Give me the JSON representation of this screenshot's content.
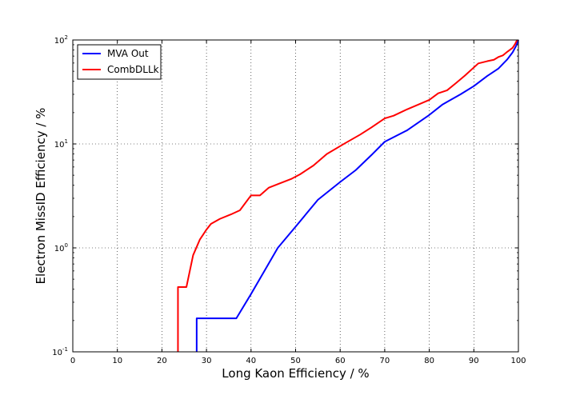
{
  "chart_data": {
    "type": "line",
    "title": "",
    "xlabel": "Long Kaon Efficiency / %",
    "ylabel": "Electron MissID Efficiency / %",
    "xlim": [
      0,
      100
    ],
    "ylim": [
      0.1,
      100
    ],
    "yscale": "log",
    "grid": true,
    "legend_position": "top-left",
    "x_ticks": [
      0,
      10,
      20,
      30,
      40,
      50,
      60,
      70,
      80,
      90,
      100
    ],
    "x_tick_labels": [
      "0",
      "10",
      "20",
      "30",
      "40",
      "50",
      "60",
      "70",
      "80",
      "90",
      "100"
    ],
    "y_ticks": [
      {
        "value": 0.1,
        "base": "10",
        "exp": "-1"
      },
      {
        "value": 1,
        "base": "10",
        "exp": "0"
      },
      {
        "value": 10,
        "base": "10",
        "exp": "1"
      },
      {
        "value": 100,
        "base": "10",
        "exp": "2"
      }
    ],
    "series": [
      {
        "name": "MVA Out",
        "color": "#0000ff",
        "points": [
          [
            27.8,
            0.1
          ],
          [
            27.8,
            0.21
          ],
          [
            36.7,
            0.21
          ],
          [
            40,
            0.36
          ],
          [
            43,
            0.6
          ],
          [
            46,
            1.0
          ],
          [
            50,
            1.6
          ],
          [
            55,
            2.9
          ],
          [
            60,
            4.3
          ],
          [
            63.5,
            5.6
          ],
          [
            67,
            7.8
          ],
          [
            70,
            10.5
          ],
          [
            75,
            13.5
          ],
          [
            80,
            19
          ],
          [
            83,
            24
          ],
          [
            87,
            30
          ],
          [
            90,
            36
          ],
          [
            93,
            45
          ],
          [
            95.5,
            53
          ],
          [
            97.5,
            65
          ],
          [
            98.7,
            76
          ],
          [
            99.5,
            88
          ],
          [
            100,
            100
          ]
        ]
      },
      {
        "name": "CombDLLk",
        "color": "#ff0000",
        "points": [
          [
            23.6,
            0.1
          ],
          [
            23.6,
            0.42
          ],
          [
            25.5,
            0.42
          ],
          [
            27,
            0.85
          ],
          [
            28.5,
            1.2
          ],
          [
            30,
            1.5
          ],
          [
            31,
            1.7
          ],
          [
            33,
            1.9
          ],
          [
            35.5,
            2.1
          ],
          [
            37.5,
            2.3
          ],
          [
            40,
            3.2
          ],
          [
            42,
            3.2
          ],
          [
            44,
            3.8
          ],
          [
            46,
            4.1
          ],
          [
            49,
            4.6
          ],
          [
            51,
            5.1
          ],
          [
            54,
            6.2
          ],
          [
            57,
            8.0
          ],
          [
            61,
            10.1
          ],
          [
            64.5,
            12.3
          ],
          [
            67,
            14.4
          ],
          [
            70,
            17.6
          ],
          [
            72,
            18.7
          ],
          [
            75,
            21.5
          ],
          [
            80,
            26.5
          ],
          [
            82,
            30.7
          ],
          [
            84,
            32.8
          ],
          [
            86,
            38.5
          ],
          [
            88,
            45.5
          ],
          [
            91,
            59.5
          ],
          [
            93,
            62.5
          ],
          [
            94.5,
            64.5
          ],
          [
            95.5,
            68.5
          ],
          [
            96.5,
            71
          ],
          [
            97.5,
            77
          ],
          [
            98.7,
            84
          ],
          [
            99.3,
            92
          ],
          [
            99.7,
            100
          ]
        ]
      }
    ]
  }
}
